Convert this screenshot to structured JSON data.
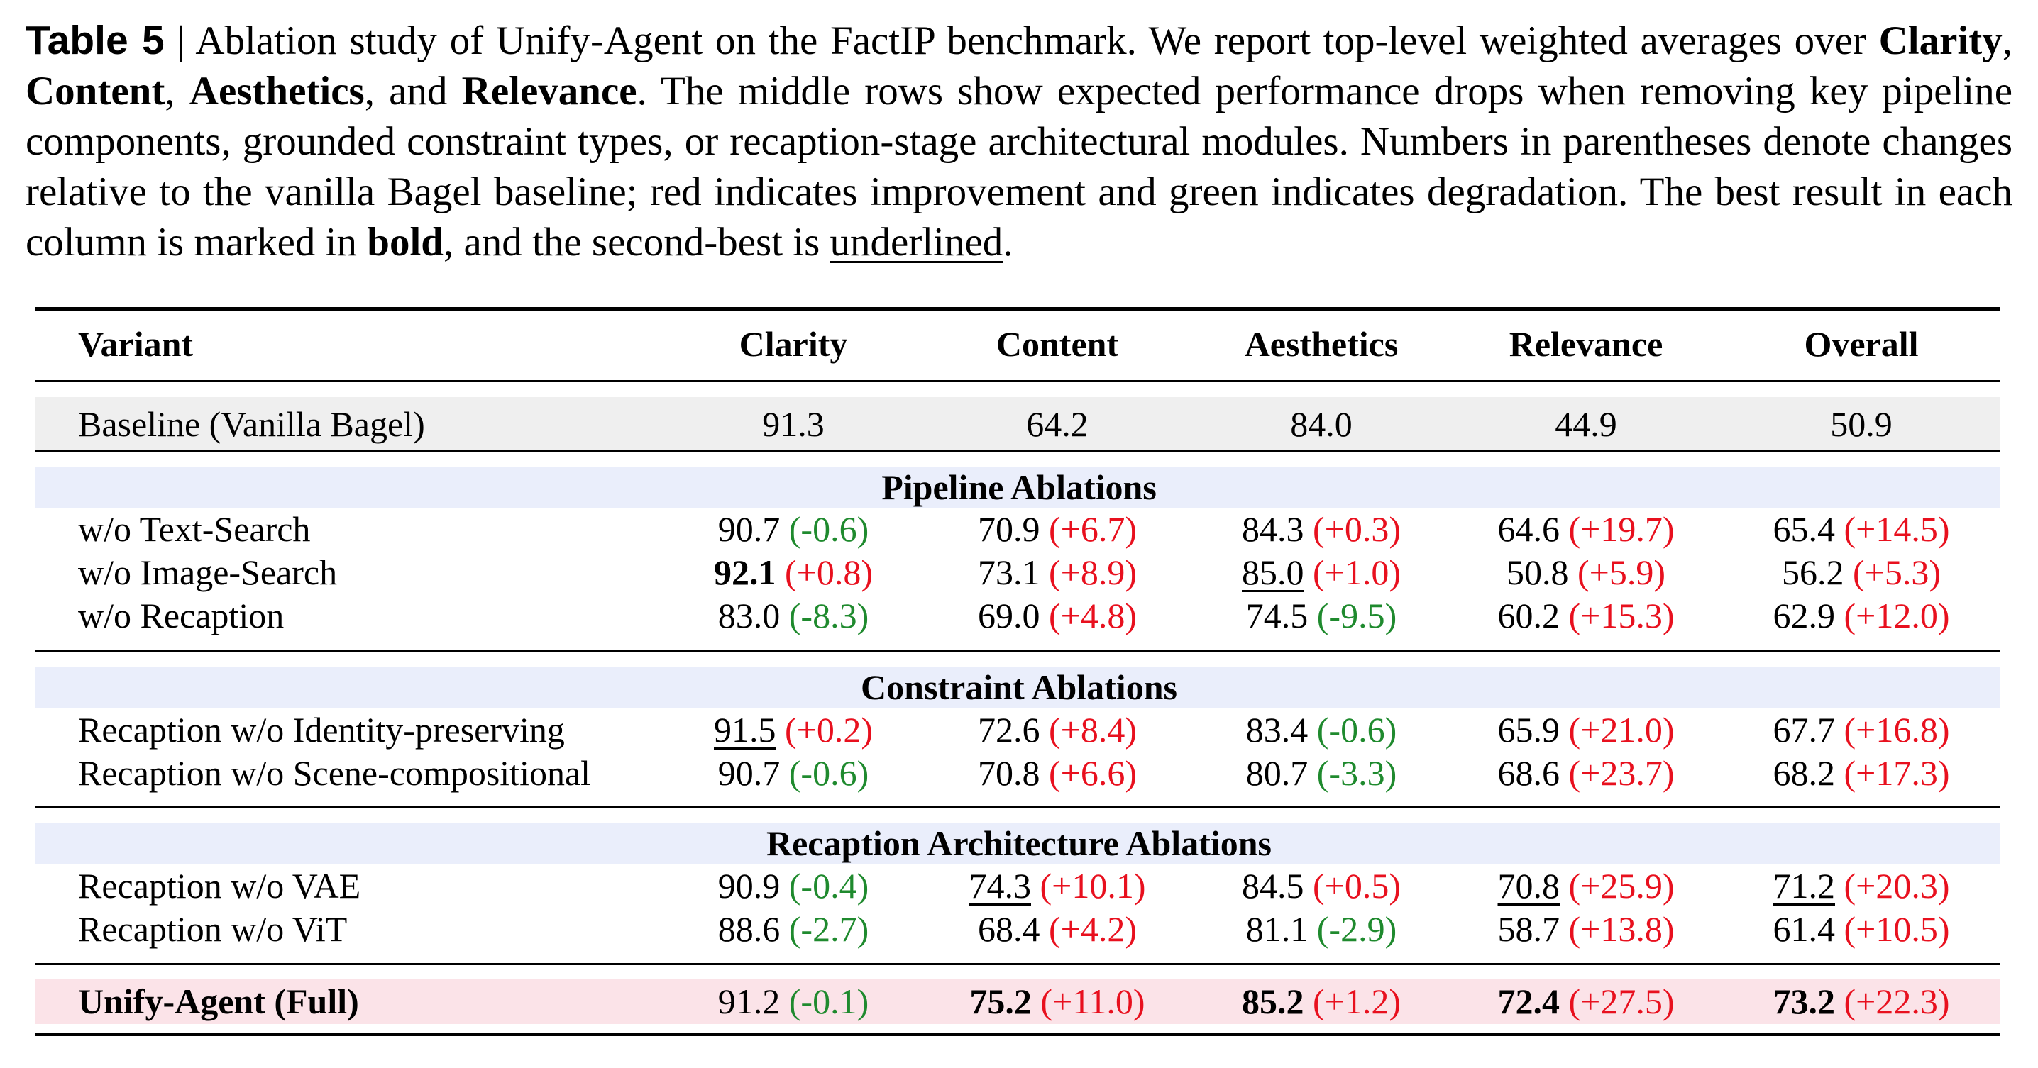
{
  "caption": {
    "label": "Table 5",
    "sep": " | ",
    "t1": "Ablation study of Unify-Agent on the FactIP benchmark. We report top-level weighted averages over ",
    "b1": "Clarity",
    "t2": ", ",
    "b2": "Content",
    "t3": ", ",
    "b3": "Aesthetics",
    "t4": ", and ",
    "b4": "Relevance",
    "t5": ". The middle rows show expected performance drops when removing key pipeline components, grounded constraint types, or recaption-stage architectural modules. Numbers in parentheses denote changes relative to the vanilla Bagel baseline; red indicates improvement and green indicates degradation. The best result in each column is marked in ",
    "b5": "bold",
    "t6": ", and the second-best is ",
    "u1": "underlined",
    "t7": "."
  },
  "colors": {
    "improvement": "#e8101e",
    "degradation": "#1f8a2e",
    "baseline_bg": "#efefef",
    "section_bg": "#eaeefb",
    "full_bg": "#fbe3e8"
  },
  "headers": [
    "Variant",
    "Clarity",
    "Content",
    "Aesthetics",
    "Relevance",
    "Overall"
  ],
  "baseline": {
    "name": "Baseline (Vanilla Bagel)",
    "cells": [
      {
        "v": "91.3",
        "d": "",
        "dir": "",
        "mark": ""
      },
      {
        "v": "64.2",
        "d": "",
        "dir": "",
        "mark": ""
      },
      {
        "v": "84.0",
        "d": "",
        "dir": "",
        "mark": ""
      },
      {
        "v": "44.9",
        "d": "",
        "dir": "",
        "mark": ""
      },
      {
        "v": "50.9",
        "d": "",
        "dir": "",
        "mark": ""
      }
    ]
  },
  "sections": [
    {
      "title": "Pipeline Ablations",
      "rows": [
        {
          "name": "w/o Text-Search",
          "cells": [
            {
              "v": "90.7",
              "d": "(-0.6)",
              "dir": "down",
              "mark": ""
            },
            {
              "v": "70.9",
              "d": "(+6.7)",
              "dir": "up",
              "mark": ""
            },
            {
              "v": "84.3",
              "d": "(+0.3)",
              "dir": "up",
              "mark": ""
            },
            {
              "v": "64.6",
              "d": "(+19.7)",
              "dir": "up",
              "mark": ""
            },
            {
              "v": "65.4",
              "d": "(+14.5)",
              "dir": "up",
              "mark": ""
            }
          ]
        },
        {
          "name": "w/o Image-Search",
          "cells": [
            {
              "v": "92.1",
              "d": "(+0.8)",
              "dir": "up",
              "mark": "best"
            },
            {
              "v": "73.1",
              "d": "(+8.9)",
              "dir": "up",
              "mark": ""
            },
            {
              "v": "85.0",
              "d": "(+1.0)",
              "dir": "up",
              "mark": "second"
            },
            {
              "v": "50.8",
              "d": "(+5.9)",
              "dir": "up",
              "mark": ""
            },
            {
              "v": "56.2",
              "d": "(+5.3)",
              "dir": "up",
              "mark": ""
            }
          ]
        },
        {
          "name": "w/o Recaption",
          "cells": [
            {
              "v": "83.0",
              "d": "(-8.3)",
              "dir": "down",
              "mark": ""
            },
            {
              "v": "69.0",
              "d": "(+4.8)",
              "dir": "up",
              "mark": ""
            },
            {
              "v": "74.5",
              "d": "(-9.5)",
              "dir": "down",
              "mark": ""
            },
            {
              "v": "60.2",
              "d": "(+15.3)",
              "dir": "up",
              "mark": ""
            },
            {
              "v": "62.9",
              "d": "(+12.0)",
              "dir": "up",
              "mark": ""
            }
          ]
        }
      ]
    },
    {
      "title": "Constraint Ablations",
      "rows": [
        {
          "name": "Recaption w/o Identity-preserving",
          "cells": [
            {
              "v": "91.5",
              "d": "(+0.2)",
              "dir": "up",
              "mark": "second"
            },
            {
              "v": "72.6",
              "d": "(+8.4)",
              "dir": "up",
              "mark": ""
            },
            {
              "v": "83.4",
              "d": "(-0.6)",
              "dir": "down",
              "mark": ""
            },
            {
              "v": "65.9",
              "d": "(+21.0)",
              "dir": "up",
              "mark": ""
            },
            {
              "v": "67.7",
              "d": "(+16.8)",
              "dir": "up",
              "mark": ""
            }
          ]
        },
        {
          "name": "Recaption w/o Scene-compositional",
          "cells": [
            {
              "v": "90.7",
              "d": "(-0.6)",
              "dir": "down",
              "mark": ""
            },
            {
              "v": "70.8",
              "d": "(+6.6)",
              "dir": "up",
              "mark": ""
            },
            {
              "v": "80.7",
              "d": "(-3.3)",
              "dir": "down",
              "mark": ""
            },
            {
              "v": "68.6",
              "d": "(+23.7)",
              "dir": "up",
              "mark": ""
            },
            {
              "v": "68.2",
              "d": "(+17.3)",
              "dir": "up",
              "mark": ""
            }
          ]
        }
      ]
    },
    {
      "title": "Recaption Architecture Ablations",
      "rows": [
        {
          "name": "Recaption w/o VAE",
          "cells": [
            {
              "v": "90.9",
              "d": "(-0.4)",
              "dir": "down",
              "mark": ""
            },
            {
              "v": "74.3",
              "d": "(+10.1)",
              "dir": "up",
              "mark": "second"
            },
            {
              "v": "84.5",
              "d": "(+0.5)",
              "dir": "up",
              "mark": ""
            },
            {
              "v": "70.8",
              "d": "(+25.9)",
              "dir": "up",
              "mark": "second"
            },
            {
              "v": "71.2",
              "d": "(+20.3)",
              "dir": "up",
              "mark": "second"
            }
          ]
        },
        {
          "name": "Recaption w/o ViT",
          "cells": [
            {
              "v": "88.6",
              "d": "(-2.7)",
              "dir": "down",
              "mark": ""
            },
            {
              "v": "68.4",
              "d": "(+4.2)",
              "dir": "up",
              "mark": ""
            },
            {
              "v": "81.1",
              "d": "(-2.9)",
              "dir": "down",
              "mark": ""
            },
            {
              "v": "58.7",
              "d": "(+13.8)",
              "dir": "up",
              "mark": ""
            },
            {
              "v": "61.4",
              "d": "(+10.5)",
              "dir": "up",
              "mark": ""
            }
          ]
        }
      ]
    }
  ],
  "full": {
    "name": "Unify-Agent (Full)",
    "cells": [
      {
        "v": "91.2",
        "d": "(-0.1)",
        "dir": "down",
        "mark": ""
      },
      {
        "v": "75.2",
        "d": "(+11.0)",
        "dir": "up",
        "mark": "best"
      },
      {
        "v": "85.2",
        "d": "(+1.2)",
        "dir": "up",
        "mark": "best"
      },
      {
        "v": "72.4",
        "d": "(+27.5)",
        "dir": "up",
        "mark": "best"
      },
      {
        "v": "73.2",
        "d": "(+22.3)",
        "dir": "up",
        "mark": "best"
      }
    ]
  }
}
